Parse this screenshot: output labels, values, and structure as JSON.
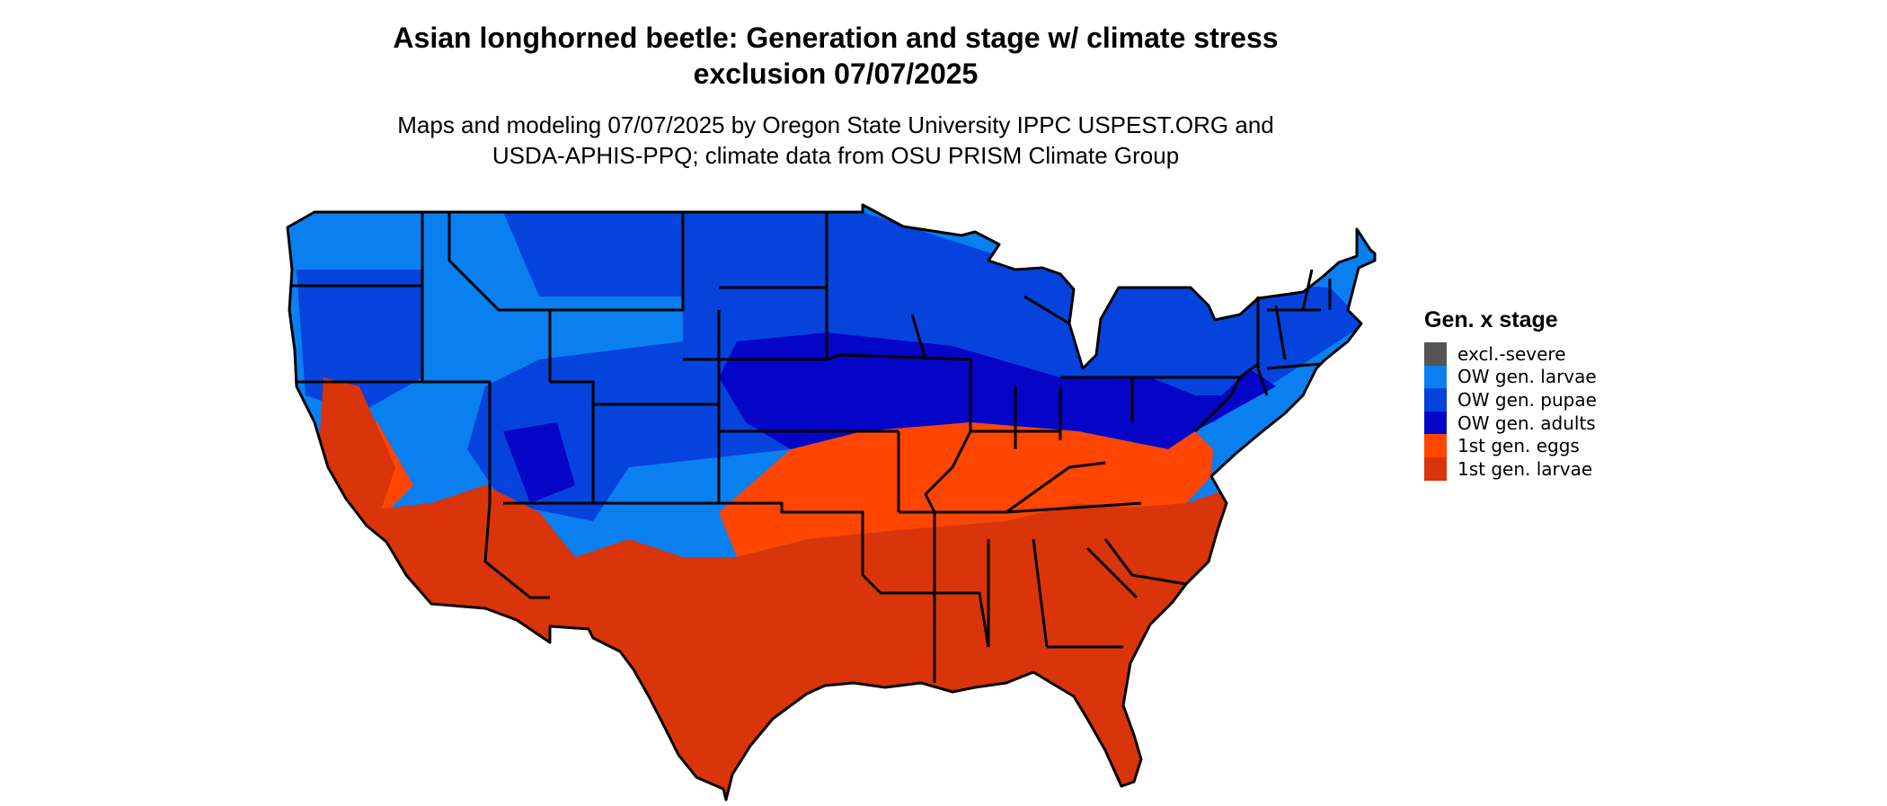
{
  "title_line1": "Asian longhorned beetle: Generation and stage w/ climate stress",
  "title_line2": "exclusion 07/07/2025",
  "subtitle_line1": "Maps and modeling 07/07/2025 by Oregon State University IPPC USPEST.ORG and",
  "subtitle_line2": "USDA-APHIS-PPQ; climate data from OSU PRISM Climate Group",
  "legend": {
    "title": "Gen. x stage",
    "items": [
      {
        "label": "excl.-severe",
        "color": "#555555"
      },
      {
        "label": "OW gen. larvae",
        "color": "#0a7ff0"
      },
      {
        "label": "OW gen. pupae",
        "color": "#0643dc"
      },
      {
        "label": "OW gen. adults",
        "color": "#0505c8"
      },
      {
        "label": "1st gen. eggs",
        "color": "#ff4500"
      },
      {
        "label": "1st gen. larvae",
        "color": "#d9340a"
      }
    ]
  },
  "map": {
    "region": "Contiguous United States",
    "state_border_color": "#000000"
  }
}
